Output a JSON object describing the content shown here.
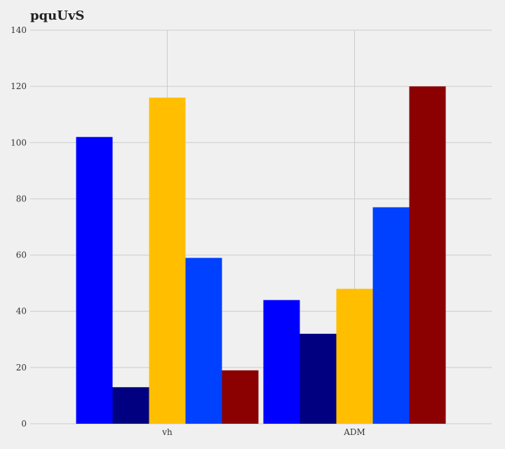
{
  "chart_data": {
    "type": "bar",
    "title": "pquUvS",
    "xlabel": "",
    "ylabel": "",
    "categories": [
      "vh",
      "ADM"
    ],
    "series": [
      {
        "color": "#0000ff",
        "values": [
          102,
          44
        ]
      },
      {
        "color": "#000080",
        "values": [
          13,
          32
        ]
      },
      {
        "color": "#ffbf00",
        "values": [
          116,
          48
        ]
      },
      {
        "color": "#0040ff",
        "values": [
          59,
          77
        ]
      },
      {
        "color": "#8b0000",
        "values": [
          19,
          120
        ]
      }
    ],
    "ylim": [
      0,
      140
    ],
    "yticks": [
      0,
      20,
      40,
      60,
      80,
      100,
      120,
      140
    ],
    "grid": true,
    "legend": "none"
  }
}
